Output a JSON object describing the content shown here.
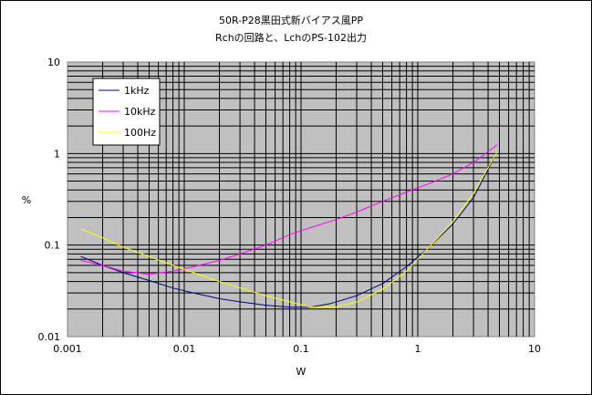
{
  "chart_data": {
    "type": "line",
    "title": "50R-P28黒田式新バイアス風PP",
    "subtitle": "Rchの回路と、LchのPS-102出力",
    "xlabel": "W",
    "ylabel": "%",
    "x_scale": "log",
    "y_scale": "log",
    "xlim": [
      0.001,
      10
    ],
    "ylim": [
      0.01,
      10
    ],
    "x_ticks": [
      "0.001",
      "0.01",
      "0.1",
      "1",
      "10"
    ],
    "y_ticks": [
      "0.01",
      "0.1",
      "1",
      "10"
    ],
    "grid": true,
    "legend_position": "top-left",
    "plot_background": "#c0c0c0",
    "series": [
      {
        "name": "1kHz",
        "color": "#000080",
        "points": [
          [
            0.0013,
            0.075
          ],
          [
            0.002,
            0.06
          ],
          [
            0.003,
            0.05
          ],
          [
            0.005,
            0.041
          ],
          [
            0.008,
            0.034
          ],
          [
            0.012,
            0.03
          ],
          [
            0.02,
            0.026
          ],
          [
            0.03,
            0.024
          ],
          [
            0.05,
            0.022
          ],
          [
            0.08,
            0.021
          ],
          [
            0.12,
            0.021
          ],
          [
            0.18,
            0.023
          ],
          [
            0.3,
            0.028
          ],
          [
            0.5,
            0.038
          ],
          [
            0.8,
            0.058
          ],
          [
            1.2,
            0.09
          ],
          [
            2,
            0.17
          ],
          [
            3,
            0.33
          ],
          [
            4.6,
            0.95
          ]
        ]
      },
      {
        "name": "10kHz",
        "color": "#ff00ff",
        "points": [
          [
            0.0013,
            0.068
          ],
          [
            0.002,
            0.06
          ],
          [
            0.003,
            0.052
          ],
          [
            0.005,
            0.048
          ],
          [
            0.008,
            0.052
          ],
          [
            0.012,
            0.058
          ],
          [
            0.02,
            0.068
          ],
          [
            0.03,
            0.08
          ],
          [
            0.05,
            0.1
          ],
          [
            0.08,
            0.13
          ],
          [
            0.12,
            0.155
          ],
          [
            0.2,
            0.19
          ],
          [
            0.3,
            0.23
          ],
          [
            0.5,
            0.3
          ],
          [
            0.8,
            0.38
          ],
          [
            1.2,
            0.46
          ],
          [
            2,
            0.6
          ],
          [
            3,
            0.8
          ],
          [
            4.8,
            1.25
          ]
        ]
      },
      {
        "name": "100Hz",
        "color": "#ffff00",
        "points": [
          [
            0.0013,
            0.15
          ],
          [
            0.002,
            0.12
          ],
          [
            0.003,
            0.095
          ],
          [
            0.005,
            0.075
          ],
          [
            0.008,
            0.06
          ],
          [
            0.012,
            0.05
          ],
          [
            0.02,
            0.04
          ],
          [
            0.03,
            0.034
          ],
          [
            0.05,
            0.028
          ],
          [
            0.08,
            0.024
          ],
          [
            0.12,
            0.021
          ],
          [
            0.2,
            0.021
          ],
          [
            0.3,
            0.024
          ],
          [
            0.5,
            0.033
          ],
          [
            0.8,
            0.052
          ],
          [
            1.2,
            0.09
          ],
          [
            2,
            0.18
          ],
          [
            3,
            0.37
          ],
          [
            4.8,
            1.05
          ]
        ]
      }
    ]
  }
}
